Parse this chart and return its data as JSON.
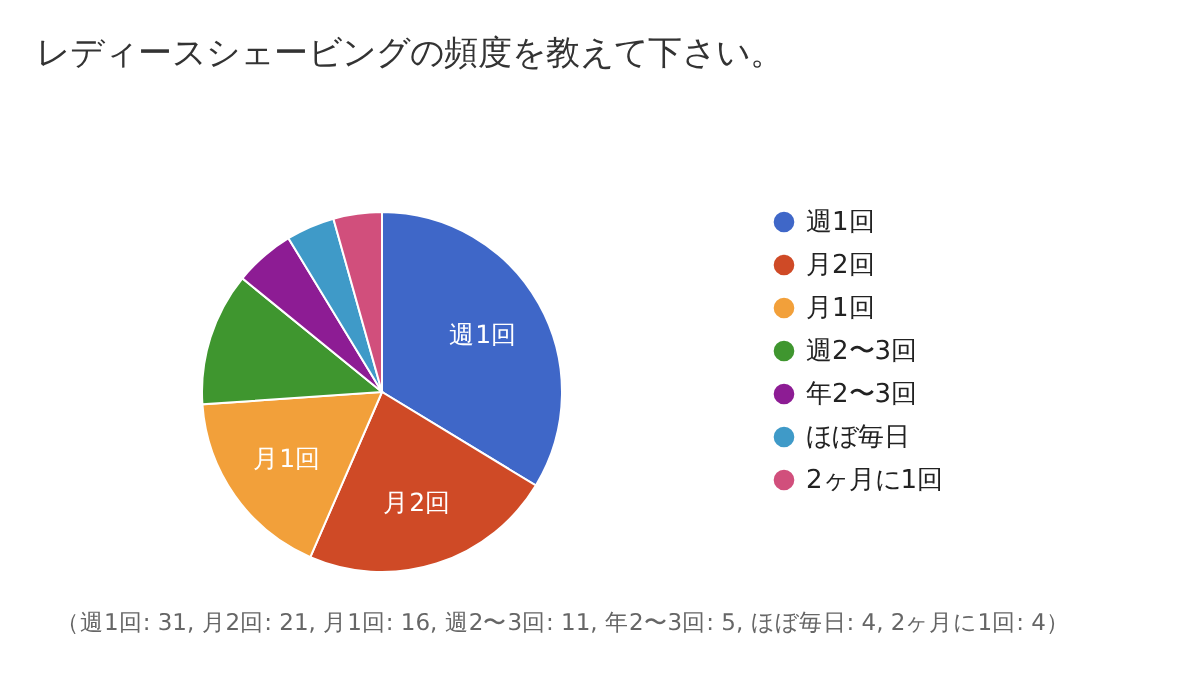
{
  "chart_data": {
    "type": "pie",
    "title": "レディースシェービングの頻度を教えて下さい。",
    "categories": [
      "週1回",
      "月2回",
      "月1回",
      "週2〜3回",
      "年2〜3回",
      "ほぼ毎日",
      "2ヶ月に1回"
    ],
    "values": [
      33.69,
      22.83,
      17.39,
      11.96,
      5.43,
      4.35,
      4.35
    ],
    "colors": [
      "#3f67c8",
      "#cf4a26",
      "#f2a03a",
      "#3f962f",
      "#8d1c94",
      "#3f9ac8",
      "#d14f7c"
    ],
    "legend": "right",
    "annotations": [
      "（週1回: 31, 月2回: 21, 月1回: 16, 週2〜3回: 11, 年2〜3回: 5, ほぼ毎日: 4, 2ヶ月に1回: 4）"
    ]
  }
}
